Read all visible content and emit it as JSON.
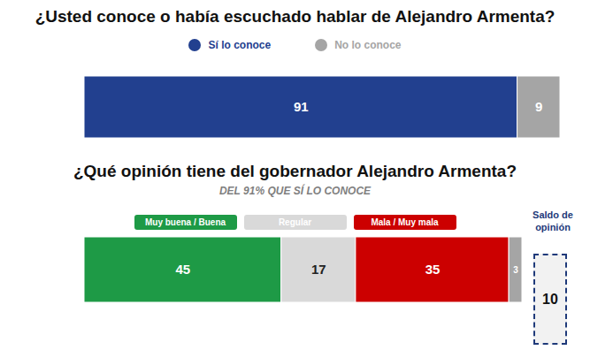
{
  "chart_data": [
    {
      "type": "bar",
      "title": "¿Usted conoce o había escuchado hablar de Alejandro Armenta?",
      "orientation": "horizontal",
      "stacked": true,
      "data_labels": true,
      "tick_labels": false,
      "legend": "top",
      "categories": [
        null
      ],
      "xlim": [
        0,
        100
      ],
      "series": [
        {
          "name": "Sí lo conoce",
          "color": "#22408f",
          "values": [
            91
          ]
        },
        {
          "name": "No lo conoce",
          "color": "#a5a5a5",
          "values": [
            9
          ]
        }
      ]
    },
    {
      "type": "bar",
      "title": "¿Qué opinión tiene del gobernador Alejandro Armenta?",
      "subtitle": "DEL 91% QUE SÍ LO CONOCE",
      "orientation": "horizontal",
      "stacked": true,
      "data_labels": true,
      "tick_labels": false,
      "legend": "top",
      "categories": [
        null
      ],
      "xlim": [
        0,
        100
      ],
      "series": [
        {
          "name": "Muy buena / Buena",
          "color": "#1e9a46",
          "values": [
            45
          ]
        },
        {
          "name": "Regular",
          "color": "#d9d9d9",
          "values": [
            17
          ]
        },
        {
          "name": "Mala / Muy mala",
          "color": "#cc0000",
          "values": [
            35
          ]
        },
        {
          "name": null,
          "color": "#a5a5a5",
          "values": [
            3
          ]
        }
      ],
      "annotations": [
        {
          "text": "Saldo de opinión",
          "value": 10
        }
      ]
    }
  ]
}
